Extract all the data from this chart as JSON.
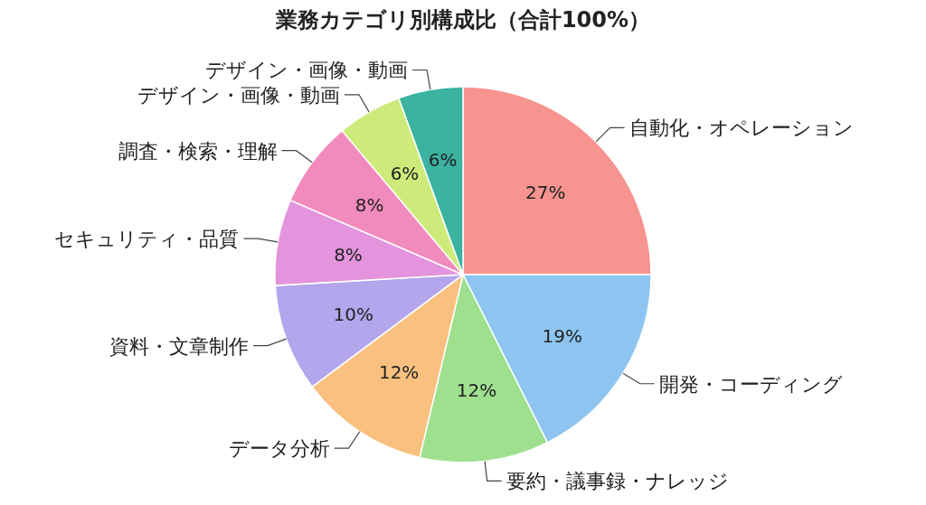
{
  "chart_data": {
    "type": "pie",
    "title": "業務カテゴリ別構成比（合計100%）",
    "categories": [
      "自動化・オペレーション",
      "開発・コーディング",
      "要約・議事録・ナレッジ",
      "データ分析",
      "資料・文章制作",
      "セキュリティ・品質",
      "調査・検索・理解",
      "デザイン・画像・動画",
      "デザイン・画像・動画"
    ],
    "values": [
      27,
      19,
      12,
      12,
      10,
      8,
      8,
      6,
      6
    ],
    "value_labels": [
      "27%",
      "19%",
      "12%",
      "12%",
      "10%",
      "8%",
      "8%",
      "6%",
      "6%"
    ],
    "colors": [
      "#f7948f",
      "#8ec5f0",
      "#9ee08e",
      "#f9c07f",
      "#b3a6ec",
      "#e394dd",
      "#f28bbd",
      "#cdeb7a",
      "#3bb3a0"
    ]
  }
}
